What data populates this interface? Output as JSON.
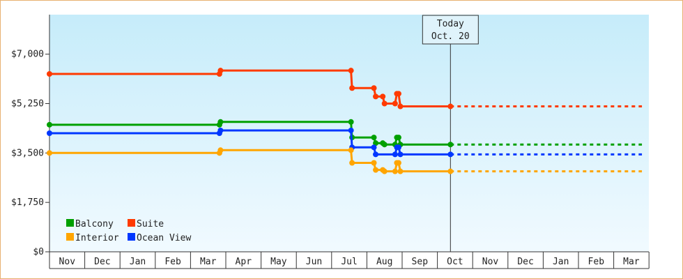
{
  "chart_data": {
    "type": "line",
    "title": "",
    "xlabel": "",
    "ylabel": "",
    "step": true,
    "x_ticks": [
      "Nov",
      "Dec",
      "Jan",
      "Feb",
      "Mar",
      "Apr",
      "May",
      "Jun",
      "Jul",
      "Aug",
      "Sep",
      "Oct",
      "Nov",
      "Dec",
      "Jan",
      "Feb",
      "Mar"
    ],
    "y_ticks": [
      "$0",
      "$1,750",
      "$3,500",
      "$5,250",
      "$7,000"
    ],
    "ylim": [
      0,
      8400
    ],
    "grid": false,
    "legend_position": "bottom-left",
    "today_marker": {
      "line1": "Today",
      "line2": "Oct. 20",
      "month_index": 11.37
    },
    "series": [
      {
        "name": "Suite",
        "color": "#ff3a00",
        "points": [
          [
            0,
            6300
          ],
          [
            4.82,
            6300
          ],
          [
            4.85,
            6420
          ],
          [
            8.55,
            6420
          ],
          [
            8.58,
            5800
          ],
          [
            9.2,
            5800
          ],
          [
            9.25,
            5500
          ],
          [
            9.45,
            5500
          ],
          [
            9.5,
            5250
          ],
          [
            9.8,
            5250
          ],
          [
            9.85,
            5600
          ],
          [
            9.9,
            5600
          ],
          [
            9.95,
            5150
          ],
          [
            11.37,
            5150
          ]
        ],
        "projection": [
          11.37,
          16.8,
          5150
        ]
      },
      {
        "name": "Balcony",
        "color": "#00a000",
        "points": [
          [
            0,
            4500
          ],
          [
            4.82,
            4500
          ],
          [
            4.85,
            4600
          ],
          [
            8.55,
            4600
          ],
          [
            8.58,
            4050
          ],
          [
            9.2,
            4050
          ],
          [
            9.25,
            3850
          ],
          [
            9.45,
            3850
          ],
          [
            9.5,
            3800
          ],
          [
            9.8,
            3800
          ],
          [
            9.85,
            4050
          ],
          [
            9.9,
            4050
          ],
          [
            9.95,
            3800
          ],
          [
            11.37,
            3800
          ]
        ],
        "projection": [
          11.37,
          16.8,
          3800
        ]
      },
      {
        "name": "Ocean View",
        "color": "#0037ff",
        "points": [
          [
            0,
            4200
          ],
          [
            4.82,
            4200
          ],
          [
            4.85,
            4300
          ],
          [
            8.55,
            4300
          ],
          [
            8.58,
            3700
          ],
          [
            9.2,
            3700
          ],
          [
            9.25,
            3450
          ],
          [
            9.8,
            3450
          ],
          [
            9.85,
            3700
          ],
          [
            9.9,
            3700
          ],
          [
            9.95,
            3450
          ],
          [
            11.37,
            3450
          ]
        ],
        "projection": [
          11.37,
          16.8,
          3450
        ]
      },
      {
        "name": "Interior",
        "color": "#ffa500",
        "points": [
          [
            0,
            3500
          ],
          [
            4.82,
            3500
          ],
          [
            4.85,
            3600
          ],
          [
            8.55,
            3600
          ],
          [
            8.58,
            3150
          ],
          [
            9.2,
            3150
          ],
          [
            9.25,
            2900
          ],
          [
            9.45,
            2900
          ],
          [
            9.5,
            2850
          ],
          [
            9.8,
            2850
          ],
          [
            9.85,
            3150
          ],
          [
            9.9,
            3150
          ],
          [
            9.95,
            2850
          ],
          [
            11.37,
            2850
          ]
        ],
        "projection": [
          11.37,
          16.8,
          2850
        ]
      }
    ],
    "legend": [
      {
        "name": "Balcony",
        "color": "#00a000"
      },
      {
        "name": "Suite",
        "color": "#ff3a00"
      },
      {
        "name": "Interior",
        "color": "#ffa500"
      },
      {
        "name": "Ocean View",
        "color": "#0037ff"
      }
    ]
  }
}
